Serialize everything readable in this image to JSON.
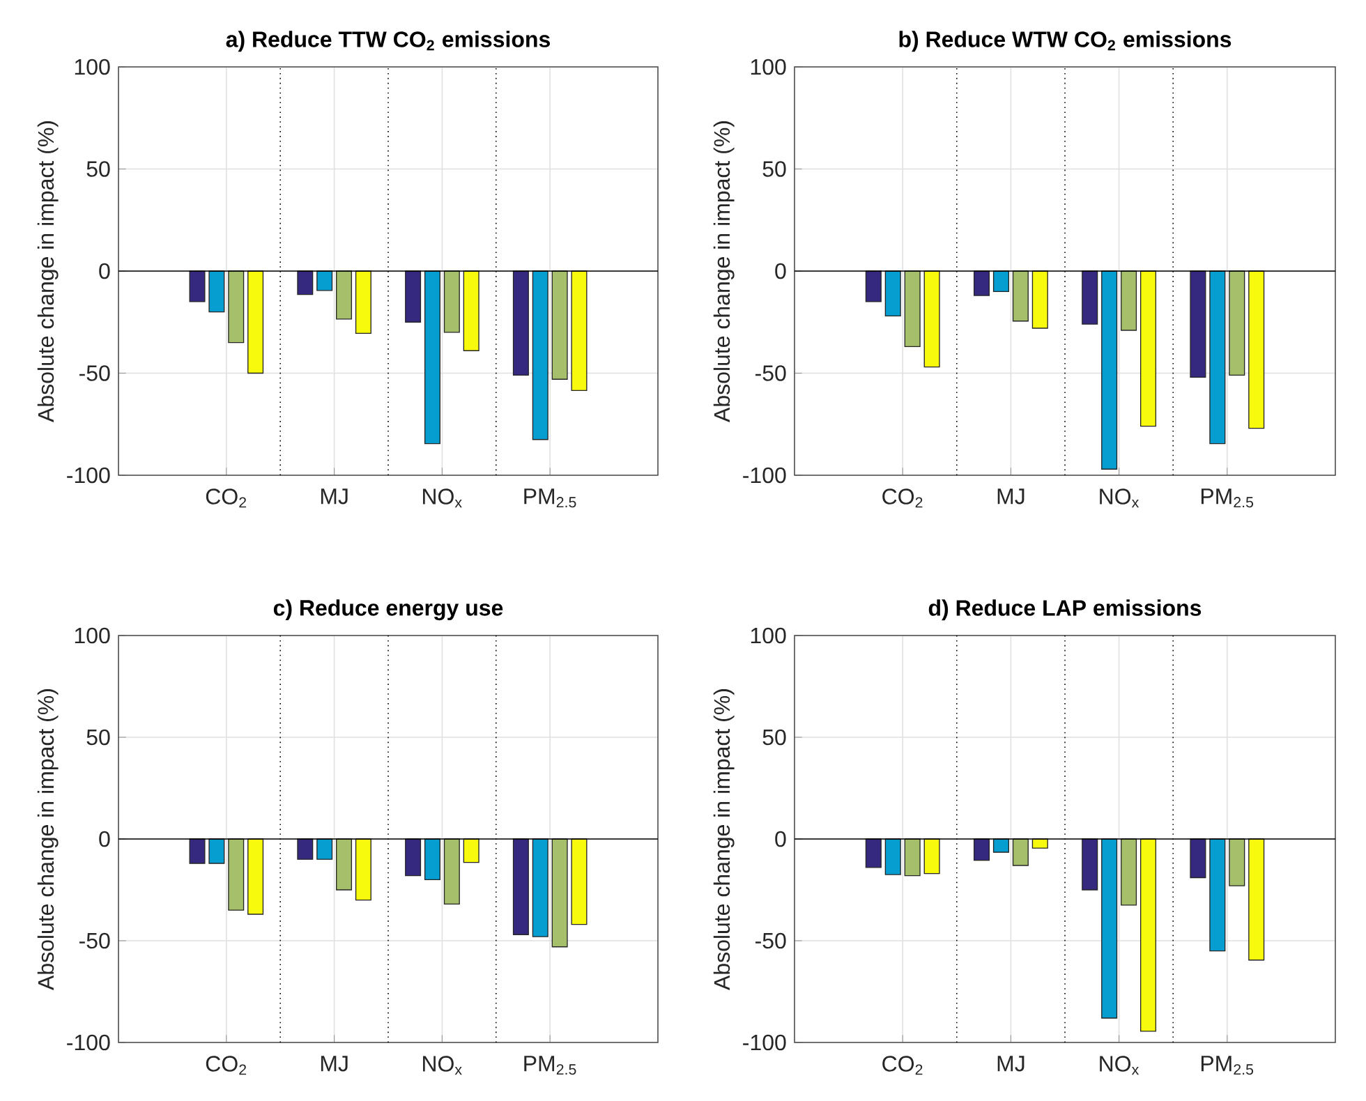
{
  "chart_data": [
    {
      "type": "bar",
      "title": "a) Reduce TTW CO$_{2}$ emissions",
      "ylabel": "Absolute change in impact (%)",
      "categories": [
        "CO$_{2}$",
        "MJ",
        "NO$_{x}$",
        "PM$_{2.5}$"
      ],
      "series": [
        {
          "color": "#35297f",
          "values": [
            -15,
            -11.5,
            -25,
            -51
          ]
        },
        {
          "color": "#069dd1",
          "values": [
            -20,
            -9.5,
            -84.5,
            -82.5
          ]
        },
        {
          "color": "#a6bf6b",
          "values": [
            -35,
            -23.5,
            -30,
            -53
          ]
        },
        {
          "color": "#f8fa0d",
          "values": [
            -50,
            -30.5,
            -39,
            -58.5
          ]
        }
      ],
      "ylim": [
        -100,
        100
      ],
      "yticks": [
        -100,
        -50,
        0,
        50,
        100
      ],
      "grid": true,
      "ref_lines": [
        {
          "axis": "y",
          "value": 0,
          "line_style": "solid",
          "color": "#000000"
        }
      ]
    },
    {
      "type": "bar",
      "title": "b) Reduce WTW CO$_{2}$ emissions",
      "ylabel": "Absolute change in impact (%)",
      "categories": [
        "CO$_{2}$",
        "MJ",
        "NO$_{x}$",
        "PM$_{2.5}$"
      ],
      "series": [
        {
          "color": "#35297f",
          "values": [
            -15,
            -12,
            -26,
            -52
          ]
        },
        {
          "color": "#069dd1",
          "values": [
            -22,
            -10,
            -97,
            -84.5
          ]
        },
        {
          "color": "#a6bf6b",
          "values": [
            -37,
            -24.5,
            -29,
            -51
          ]
        },
        {
          "color": "#f8fa0d",
          "values": [
            -47,
            -28,
            -76,
            -77
          ]
        }
      ],
      "ylim": [
        -100,
        100
      ],
      "yticks": [
        -100,
        -50,
        0,
        50,
        100
      ],
      "grid": true,
      "ref_lines": [
        {
          "axis": "y",
          "value": 0,
          "line_style": "solid",
          "color": "#000000"
        }
      ]
    },
    {
      "type": "bar",
      "title": "c) Reduce energy use",
      "ylabel": "Absolute change in impact (%)",
      "categories": [
        "CO$_{2}$",
        "MJ",
        "NO$_{x}$",
        "PM$_{2.5}$"
      ],
      "series": [
        {
          "color": "#35297f",
          "values": [
            -12,
            -10,
            -18,
            -47
          ]
        },
        {
          "color": "#069dd1",
          "values": [
            -12,
            -10,
            -20,
            -48
          ]
        },
        {
          "color": "#a6bf6b",
          "values": [
            -35,
            -25,
            -32,
            -53
          ]
        },
        {
          "color": "#f8fa0d",
          "values": [
            -37,
            -30,
            -11.5,
            -42
          ]
        }
      ],
      "ylim": [
        -100,
        100
      ],
      "yticks": [
        -100,
        -50,
        0,
        50,
        100
      ],
      "grid": true,
      "ref_lines": [
        {
          "axis": "y",
          "value": 0,
          "line_style": "solid",
          "color": "#000000"
        }
      ]
    },
    {
      "type": "bar",
      "title": "d) Reduce LAP emissions",
      "ylabel": "Absolute change in impact (%)",
      "categories": [
        "CO$_{2}$",
        "MJ",
        "NO$_{x}$",
        "PM$_{2.5}$"
      ],
      "series": [
        {
          "color": "#35297f",
          "values": [
            -14,
            -10.5,
            -25,
            -19
          ]
        },
        {
          "color": "#069dd1",
          "values": [
            -17.5,
            -6.5,
            -88,
            -55
          ]
        },
        {
          "color": "#a6bf6b",
          "values": [
            -18,
            -13,
            -32.5,
            -23
          ]
        },
        {
          "color": "#f8fa0d",
          "values": [
            -17,
            -4.5,
            -94.5,
            -59.5
          ]
        }
      ],
      "ylim": [
        -100,
        100
      ],
      "yticks": [
        -100,
        -50,
        0,
        50,
        100
      ],
      "grid": true,
      "ref_lines": [
        {
          "axis": "y",
          "value": 0,
          "line_style": "solid",
          "color": "#000000"
        }
      ]
    }
  ]
}
